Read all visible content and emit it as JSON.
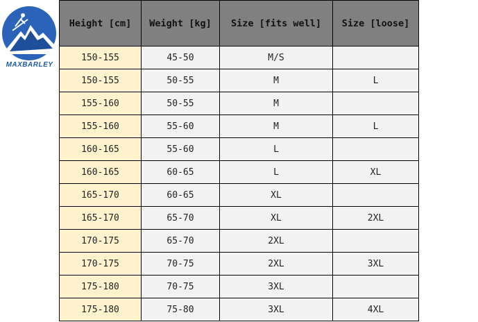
{
  "logo": {
    "text": "MAXBARLEY",
    "colors": {
      "circle": "#2a63b8",
      "mountain": "#ffffff"
    }
  },
  "table": {
    "headers": [
      "Height [cm]",
      "Weight [kg]",
      "Size [fits well]",
      "Size [loose]"
    ],
    "rows": [
      [
        "150-155",
        "45-50",
        "M/S",
        ""
      ],
      [
        "150-155",
        "50-55",
        "M",
        "L"
      ],
      [
        "155-160",
        "50-55",
        "M",
        ""
      ],
      [
        "155-160",
        "55-60",
        "M",
        "L"
      ],
      [
        "160-165",
        "55-60",
        "L",
        ""
      ],
      [
        "160-165",
        "60-65",
        "L",
        "XL"
      ],
      [
        "165-170",
        "60-65",
        "XL",
        ""
      ],
      [
        "165-170",
        "65-70",
        "XL",
        "2XL"
      ],
      [
        "170-175",
        "65-70",
        "2XL",
        ""
      ],
      [
        "170-175",
        "70-75",
        "2XL",
        "3XL"
      ],
      [
        "175-180",
        "70-75",
        "3XL",
        ""
      ],
      [
        "175-180",
        "75-80",
        "3XL",
        "4XL"
      ]
    ],
    "colors": {
      "header": "#808080",
      "height_col": "#fff2cc",
      "cell": "#f2f2f2"
    }
  }
}
